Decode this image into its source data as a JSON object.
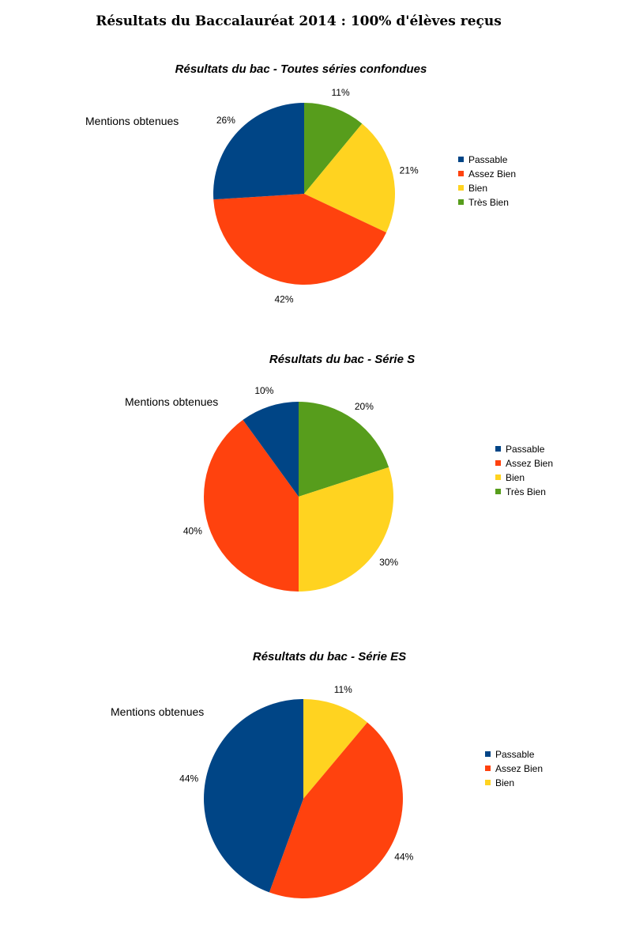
{
  "page_title": "Résultats du Baccalauréat 2014 : 100% d'élèves reçus",
  "colors": {
    "Passable": "#004586",
    "Assez Bien": "#ff420e",
    "Bien": "#ffd320",
    "Très Bien": "#579d1c"
  },
  "chart_data": [
    {
      "type": "pie",
      "title": "Résultats du bac - Toutes séries confondues",
      "subtitle": "Mentions obtenues",
      "legend_position": "right",
      "start": "top, clockwise",
      "slices": [
        {
          "label": "Très Bien",
          "value": 11,
          "display": "11%"
        },
        {
          "label": "Bien",
          "value": 21,
          "display": "21%"
        },
        {
          "label": "Assez Bien",
          "value": 42,
          "display": "42%"
        },
        {
          "label": "Passable",
          "value": 26,
          "display": "26%"
        }
      ],
      "legend": [
        "Passable",
        "Assez Bien",
        "Bien",
        "Très Bien"
      ]
    },
    {
      "type": "pie",
      "title": "Résultats du bac - Série S",
      "subtitle": "Mentions obtenues",
      "legend_position": "right",
      "start": "top, clockwise",
      "slices": [
        {
          "label": "Très Bien",
          "value": 20,
          "display": "20%"
        },
        {
          "label": "Bien",
          "value": 30,
          "display": "30%"
        },
        {
          "label": "Assez Bien",
          "value": 40,
          "display": "40%"
        },
        {
          "label": "Passable",
          "value": 10,
          "display": "10%"
        }
      ],
      "legend": [
        "Passable",
        "Assez Bien",
        "Bien",
        "Très Bien"
      ]
    },
    {
      "type": "pie",
      "title": "Résultats du bac - Série ES",
      "subtitle": "Mentions obtenues",
      "legend_position": "right",
      "start": "top, clockwise",
      "slices": [
        {
          "label": "Bien",
          "value": 11,
          "display": "11%"
        },
        {
          "label": "Assez Bien",
          "value": 44,
          "display": "44%"
        },
        {
          "label": "Passable",
          "value": 44,
          "display": "44%"
        }
      ],
      "legend": [
        "Passable",
        "Assez Bien",
        "Bien"
      ]
    }
  ]
}
